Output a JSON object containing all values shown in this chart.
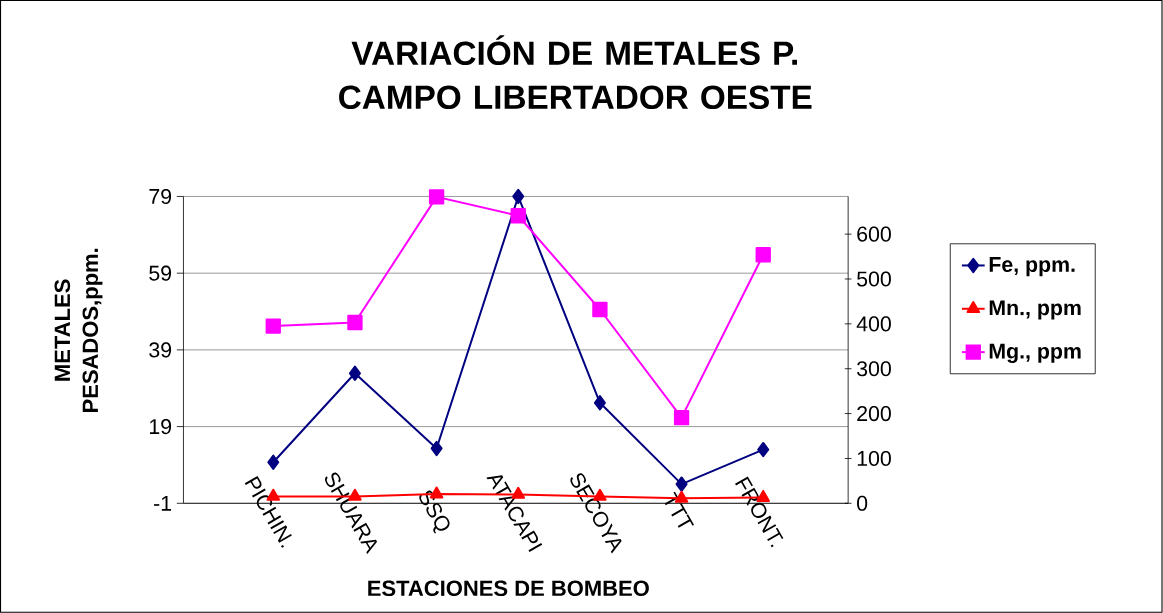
{
  "chart_data": {
    "type": "line",
    "title": "VARIACIÓN DE METALES P. CAMPO LIBERTADOR OESTE",
    "xlabel": "ESTACIONES DE BOMBEO",
    "ylabel": "METALES PESADOS,ppm.",
    "categories": [
      "PICHIN.",
      "SHUARA",
      "SSQ",
      "ATACAPI",
      "SECOYA",
      "TTT",
      "FRONT."
    ],
    "series": [
      {
        "name": "Fe, ppm.",
        "color": "#000080",
        "marker": "diamond",
        "values": [
          9.7,
          32.9,
          13.3,
          79,
          25.2,
          4,
          13
        ]
      },
      {
        "name": "Mn., ppm",
        "color": "#ff0000",
        "marker": "triangle",
        "values": [
          0.8,
          0.8,
          1.4,
          1.3,
          0.8,
          0.3,
          0.5
        ]
      },
      {
        "name": "Mg., ppm",
        "color": "#ff00ff",
        "marker": "square",
        "axis": "y2",
        "values": [
          395,
          403,
          683,
          641,
          432,
          191,
          554
        ]
      }
    ],
    "ylim": [
      -1,
      79
    ],
    "yticks": [
      -1,
      19,
      39,
      59,
      79
    ],
    "y2lim": [
      0,
      684
    ],
    "y2ticks": [
      0,
      100,
      200,
      300,
      400,
      500,
      600
    ],
    "grid": "y",
    "legend": "right",
    "line_style": "solid"
  }
}
